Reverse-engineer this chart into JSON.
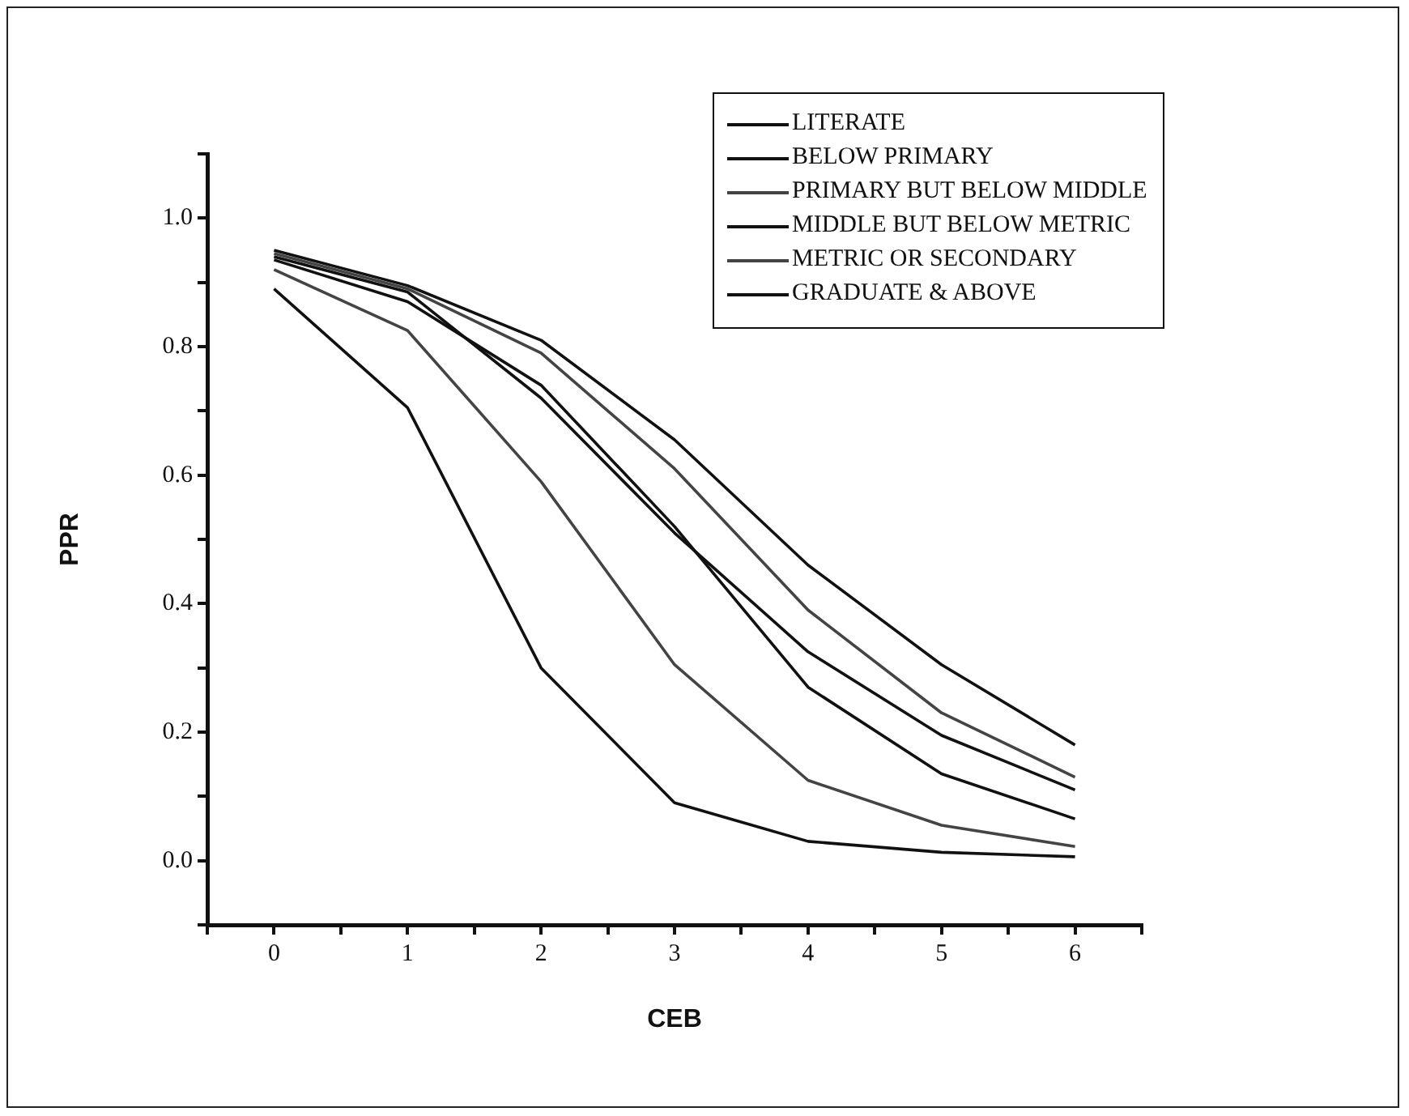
{
  "chart_data": {
    "type": "line",
    "xlabel": "CEB",
    "ylabel": "PPR",
    "legend": "top right",
    "marker": "none",
    "line_style": "solid",
    "x": [
      0,
      1,
      2,
      3,
      4,
      5,
      6
    ],
    "xlim": [
      -0.5,
      6.5
    ],
    "xticks": [
      {
        "value": -0.5,
        "label": null
      },
      0,
      {
        "value": 0.5,
        "label": null
      },
      1,
      {
        "value": 1.5,
        "label": null
      },
      2,
      {
        "value": 2.5,
        "label": null
      },
      3,
      {
        "value": 3.5,
        "label": null
      },
      4,
      {
        "value": 4.5,
        "label": null
      },
      5,
      {
        "value": 5.5,
        "label": null
      },
      6,
      {
        "value": 6.5,
        "label": null
      }
    ],
    "ylim": [
      -0.1,
      1.1
    ],
    "yticks": [
      {
        "value": -0.1,
        "label": null
      },
      {
        "value": 0,
        "label": "0.0"
      },
      {
        "value": 0.1,
        "label": null
      },
      {
        "value": 0.2,
        "label": "0.2"
      },
      {
        "value": 0.3,
        "label": null
      },
      {
        "value": 0.4,
        "label": "0.4"
      },
      {
        "value": 0.5,
        "label": null
      },
      {
        "value": 0.6,
        "label": "0.6"
      },
      {
        "value": 0.7,
        "label": null
      },
      {
        "value": 0.8,
        "label": "0.8"
      },
      {
        "value": 0.9,
        "label": null
      },
      {
        "value": 1.0,
        "label": "1.0"
      },
      {
        "value": 1.1,
        "label": null
      }
    ],
    "series": [
      {
        "name": "LITERATE",
        "color": "#111111",
        "values": [
          0.94,
          0.885,
          0.72,
          0.51,
          0.325,
          0.195,
          0.11
        ]
      },
      {
        "name": "BELOW PRIMARY",
        "color": "#111111",
        "values": [
          0.95,
          0.895,
          0.81,
          0.655,
          0.46,
          0.305,
          0.18
        ]
      },
      {
        "name": "PRIMARY BUT BELOW MIDDLE",
        "color": "#444444",
        "values": [
          0.945,
          0.89,
          0.79,
          0.61,
          0.39,
          0.23,
          0.13
        ]
      },
      {
        "name": "MIDDLE BUT BELOW METRIC",
        "color": "#111111",
        "values": [
          0.935,
          0.87,
          0.74,
          0.52,
          0.27,
          0.135,
          0.065
        ]
      },
      {
        "name": "METRIC OR SECONDARY",
        "color": "#444444",
        "values": [
          0.92,
          0.825,
          0.59,
          0.305,
          0.125,
          0.055,
          0.022
        ]
      },
      {
        "name": "GRADUATE & ABOVE",
        "color": "#111111",
        "values": [
          0.89,
          0.705,
          0.3,
          0.09,
          0.03,
          0.013,
          0.006
        ]
      }
    ]
  }
}
